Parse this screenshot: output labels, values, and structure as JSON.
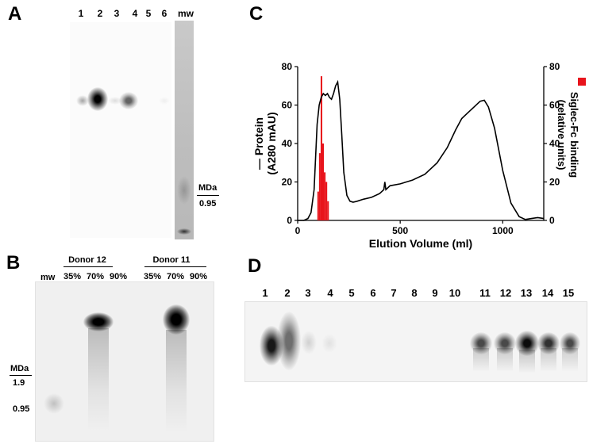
{
  "panels": {
    "A": {
      "letter": "A",
      "lanes": [
        "1",
        "2",
        "3",
        "4",
        "5",
        "6",
        "mw"
      ],
      "marker_unit": "MDa",
      "marker_value": "0.95"
    },
    "B": {
      "letter": "B",
      "mw_label": "mw",
      "group1": "Donor 12",
      "group2": "Donor 11",
      "percents1": [
        "35%",
        "70%",
        "90%"
      ],
      "percents2": [
        "35%",
        "70%",
        "90%"
      ],
      "marker_unit": "MDa",
      "marker_values": [
        "1.9",
        "0.95"
      ]
    },
    "C": {
      "letter": "C",
      "legend_label": "Siglec-Fc binding",
      "legend_color": "#e8141c"
    },
    "D": {
      "letter": "D",
      "lanes": [
        "1",
        "2",
        "3",
        "4",
        "5",
        "6",
        "7",
        "8",
        "9",
        "10",
        "11",
        "12",
        "13",
        "14",
        "15"
      ]
    }
  },
  "chart_data": {
    "type": "line",
    "xlabel": "Elution Volume (ml)",
    "ylabel_left": "— Protein",
    "ylabel_left_unit": "(A280 mAU)",
    "ylabel_right": "Siglec-Fc binding",
    "ylabel_right_unit": "(relative units)",
    "xlim": [
      0,
      1200
    ],
    "ylim": [
      0,
      80
    ],
    "x_ticks": [
      "0",
      "500",
      "1000"
    ],
    "x_tick_values": [
      0,
      500,
      1000
    ],
    "y_ticks": [
      "0",
      "20",
      "40",
      "60",
      "80"
    ],
    "y_tick_values": [
      0,
      20,
      40,
      60,
      80
    ],
    "series": [
      {
        "type": "line",
        "color": "#000000",
        "x": [
          0,
          30,
          50,
          65,
          80,
          95,
          105,
          115,
          125,
          135,
          145,
          155,
          165,
          175,
          185,
          195,
          205,
          215,
          225,
          240,
          255,
          270,
          290,
          320,
          360,
          400,
          420,
          425,
          430,
          450,
          500,
          560,
          620,
          680,
          730,
          770,
          800,
          830,
          860,
          890,
          910,
          930,
          960,
          1000,
          1040,
          1080,
          1110,
          1140,
          1170,
          1200
        ],
        "y": [
          0,
          0,
          1,
          4,
          16,
          50,
          60,
          64,
          66,
          65,
          66,
          64,
          63,
          66,
          70,
          72,
          63,
          45,
          25,
          13,
          10,
          9.5,
          10,
          11,
          12,
          14,
          16,
          20,
          16,
          18,
          19,
          21,
          24,
          30,
          38,
          47,
          53,
          56,
          59,
          62,
          62.5,
          59,
          48,
          26,
          9,
          2,
          0.5,
          1,
          1.5,
          1
        ]
      },
      {
        "type": "bar",
        "color": "#e8141c",
        "x": [
          100,
          108,
          116,
          124,
          132,
          140,
          148
        ],
        "y": [
          15,
          35,
          75,
          40,
          25,
          20,
          10
        ]
      }
    ]
  }
}
